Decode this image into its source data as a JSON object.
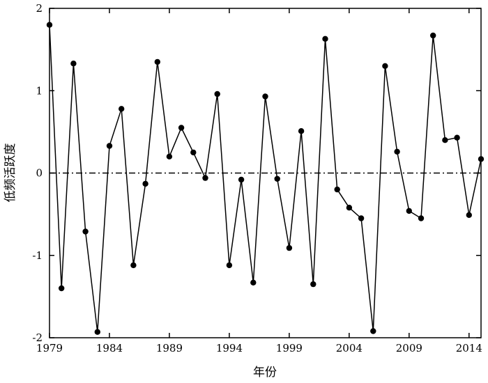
{
  "chart_data": {
    "type": "line",
    "title": "",
    "xlabel": "年份",
    "ylabel": "低频活跃度",
    "xlim": [
      1979,
      2015
    ],
    "ylim": [
      -2,
      2
    ],
    "x_ticks": [
      1979,
      1984,
      1989,
      1994,
      1999,
      2004,
      2009,
      2014
    ],
    "y_ticks": [
      -2,
      -1,
      0,
      1,
      2
    ],
    "grid": false,
    "legend": "none",
    "reference_line": {
      "y": 0,
      "style": "dash-dot"
    },
    "series": [
      {
        "x": [
          1979,
          1980,
          1981,
          1982,
          1983,
          1984,
          1985,
          1986,
          1987,
          1988,
          1989,
          1990,
          1991,
          1992,
          1993,
          1994,
          1995,
          1996,
          1997,
          1998,
          1999,
          2000,
          2001,
          2002,
          2003,
          2004,
          2005,
          2006,
          2007,
          2008,
          2009,
          2010,
          2011,
          2012,
          2013,
          2014,
          2015
        ],
        "values": [
          1.8,
          -1.4,
          1.33,
          -0.71,
          -1.93,
          0.33,
          0.78,
          -1.12,
          -0.13,
          1.35,
          0.2,
          0.55,
          0.25,
          -0.06,
          0.96,
          -1.12,
          -0.08,
          -1.33,
          0.93,
          -0.07,
          -0.91,
          0.51,
          -1.35,
          1.63,
          -0.2,
          -0.42,
          -0.55,
          -1.92,
          1.3,
          0.26,
          -0.46,
          -0.55,
          1.67,
          0.4,
          0.43,
          -0.51,
          0.17
        ]
      }
    ],
    "colors": {
      "line": "#000000",
      "marker": "#000000",
      "axis": "#000000"
    }
  }
}
